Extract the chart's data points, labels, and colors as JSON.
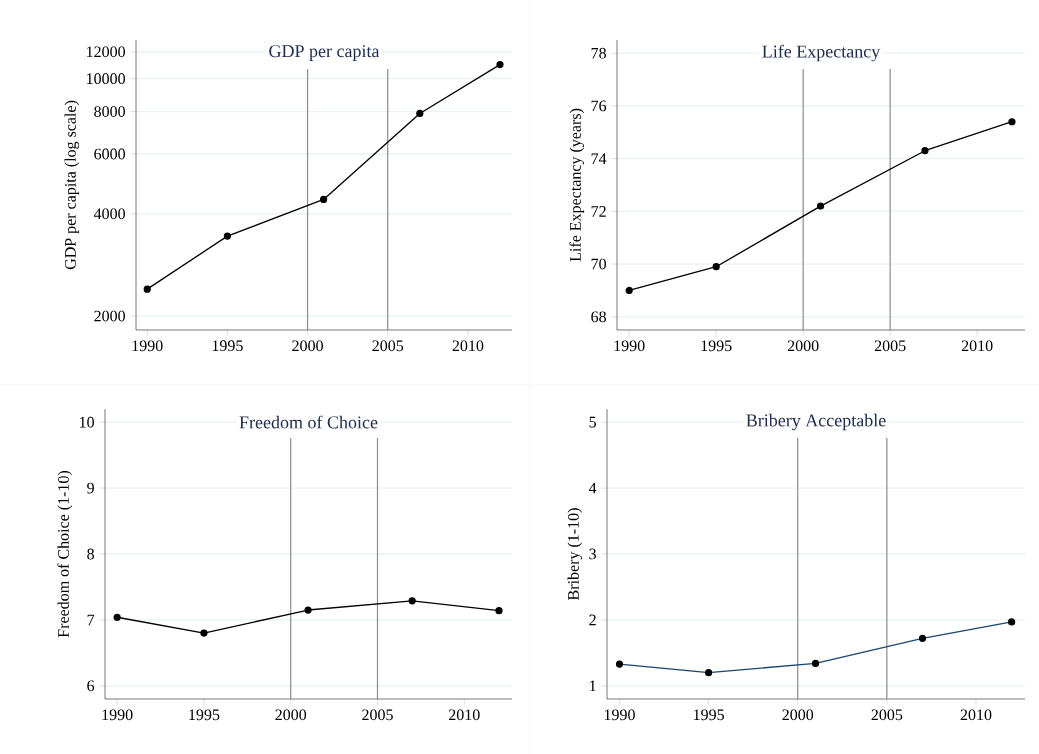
{
  "chart_data": [
    {
      "type": "line",
      "title": "GDP per capita",
      "ylabel": "GDP per capita (log scale)",
      "x": [
        1990,
        1995,
        2001,
        2007,
        2012
      ],
      "series": [
        {
          "color": "#000000",
          "values": [
            2400,
            3440,
            4410,
            7900,
            11000
          ]
        }
      ],
      "log": true,
      "xlim": [
        1989.3,
        2012.75
      ],
      "ylim": [
        1820,
        13000
      ],
      "xticks": [
        1990,
        1995,
        2000,
        2005,
        2010
      ],
      "yticks": [
        2000,
        4000,
        6000,
        8000,
        10000,
        12000
      ],
      "grid": "y",
      "marker": "circle",
      "ref_lines": [
        {
          "axis": "x",
          "value": 2000,
          "color": "#8c8c8c"
        },
        {
          "axis": "x",
          "value": 2005,
          "color": "#8c8c8c"
        }
      ]
    },
    {
      "type": "line",
      "title": "Life Expectancy",
      "ylabel": "Life Expectancy (years)",
      "x": [
        1990,
        1995,
        2001,
        2007,
        2012
      ],
      "series": [
        {
          "color": "#000000",
          "values": [
            69.0,
            69.9,
            72.2,
            74.3,
            75.4
          ]
        }
      ],
      "xlim": [
        1989.3,
        2012.75
      ],
      "ylim": [
        67.5,
        78.5
      ],
      "xticks": [
        1990,
        1995,
        2000,
        2005,
        2010
      ],
      "yticks": [
        68,
        70,
        72,
        74,
        76,
        78
      ],
      "grid": "y",
      "marker": "circle",
      "ref_lines": [
        {
          "axis": "x",
          "value": 2000,
          "color": "#8c8c8c"
        },
        {
          "axis": "x",
          "value": 2005,
          "color": "#8c8c8c"
        }
      ]
    },
    {
      "type": "line",
      "title": "Freedom of Choice",
      "ylabel": "Freedom of Choice (1-10)",
      "x": [
        1990,
        1995,
        2001,
        2007,
        2012
      ],
      "series": [
        {
          "color": "#000000",
          "values": [
            7.04,
            6.8,
            7.15,
            7.29,
            7.14
          ]
        }
      ],
      "xlim": [
        1989.3,
        2012.75
      ],
      "ylim": [
        5.8,
        10.2
      ],
      "xticks": [
        1990,
        1995,
        2000,
        2005,
        2010
      ],
      "yticks": [
        6,
        7,
        8,
        9,
        10
      ],
      "grid": "y",
      "marker": "circle",
      "ref_lines": [
        {
          "axis": "x",
          "value": 2000,
          "color": "#8c8c8c"
        },
        {
          "axis": "x",
          "value": 2005,
          "color": "#8c8c8c"
        }
      ]
    },
    {
      "type": "line",
      "title": "Bribery Acceptable",
      "ylabel": "Bribery (1-10)",
      "x": [
        1990,
        1995,
        2001,
        2007,
        2012
      ],
      "series": [
        {
          "color": "#1a476f",
          "values": [
            1.33,
            1.2,
            1.34,
            1.72,
            1.97
          ]
        }
      ],
      "xlim": [
        1989.3,
        2012.75
      ],
      "ylim": [
        0.8,
        5.2
      ],
      "xticks": [
        1990,
        1995,
        2000,
        2005,
        2010
      ],
      "yticks": [
        1,
        2,
        3,
        4,
        5
      ],
      "grid": "y",
      "marker": "circle",
      "ref_lines": [
        {
          "axis": "x",
          "value": 2000,
          "color": "#8c8c8c"
        },
        {
          "axis": "x",
          "value": 2005,
          "color": "#8c8c8c"
        }
      ]
    }
  ]
}
